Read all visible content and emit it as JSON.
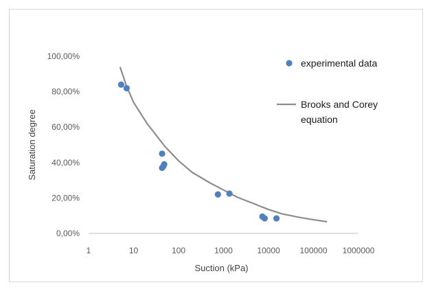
{
  "chart_data": {
    "type": "scatter",
    "title": "",
    "xlabel": "Suction (kPa)",
    "ylabel": "Saturation degree",
    "xscale": "log",
    "xlim": [
      1,
      1000000
    ],
    "ylim": [
      0,
      1
    ],
    "x_tick_labels": [
      "1",
      "10",
      "100",
      "1000",
      "10000",
      "100000",
      "1000000"
    ],
    "x_tick_values": [
      1,
      10,
      100,
      1000,
      10000,
      100000,
      1000000
    ],
    "y_tick_labels": [
      "0,00%",
      "20,00%",
      "40,00%",
      "60,00%",
      "80,00%",
      "100,00%"
    ],
    "y_tick_values": [
      0,
      0.2,
      0.4,
      0.6,
      0.8,
      1.0
    ],
    "grid": false,
    "legend_position": "right",
    "series": [
      {
        "name": "experimental data",
        "kind": "scatter",
        "color": "#4f81bd",
        "points": [
          {
            "x": 5.3,
            "y": 0.84
          },
          {
            "x": 7.0,
            "y": 0.82
          },
          {
            "x": 43,
            "y": 0.45
          },
          {
            "x": 48,
            "y": 0.39
          },
          {
            "x": 46,
            "y": 0.38
          },
          {
            "x": 43,
            "y": 0.37
          },
          {
            "x": 750,
            "y": 0.22
          },
          {
            "x": 1350,
            "y": 0.225
          },
          {
            "x": 7300,
            "y": 0.095
          },
          {
            "x": 8200,
            "y": 0.085
          },
          {
            "x": 15000,
            "y": 0.085
          }
        ]
      },
      {
        "name": "Brooks and Corey equation",
        "kind": "line",
        "color": "#8c8c8c",
        "points": [
          {
            "x": 5,
            "y": 0.94
          },
          {
            "x": 7,
            "y": 0.83
          },
          {
            "x": 10,
            "y": 0.74
          },
          {
            "x": 20,
            "y": 0.62
          },
          {
            "x": 50,
            "y": 0.49
          },
          {
            "x": 100,
            "y": 0.41
          },
          {
            "x": 200,
            "y": 0.345
          },
          {
            "x": 500,
            "y": 0.285
          },
          {
            "x": 1000,
            "y": 0.245
          },
          {
            "x": 2000,
            "y": 0.205
          },
          {
            "x": 5000,
            "y": 0.165
          },
          {
            "x": 10000,
            "y": 0.135
          },
          {
            "x": 20000,
            "y": 0.11
          },
          {
            "x": 50000,
            "y": 0.09
          },
          {
            "x": 100000,
            "y": 0.077
          },
          {
            "x": 200000,
            "y": 0.066
          }
        ]
      }
    ],
    "legend": [
      {
        "label": "experimental data",
        "marker": "circle",
        "color": "#4f81bd"
      },
      {
        "label": "Brooks and Corey",
        "label_line2": "equation",
        "marker": "line",
        "color": "#8c8c8c"
      }
    ]
  }
}
